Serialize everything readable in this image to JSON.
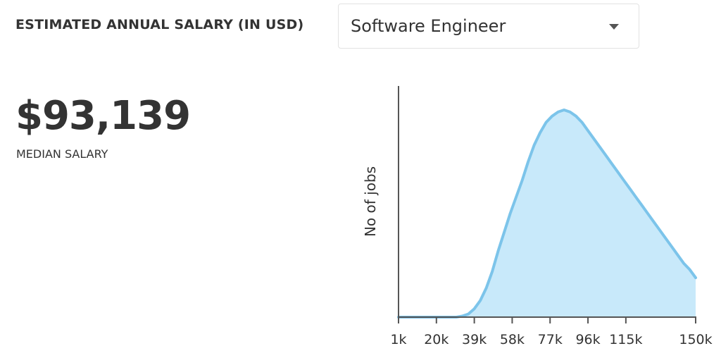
{
  "header": {
    "title": "ESTIMATED ANNUAL SALARY (IN USD)",
    "job_select": {
      "selected": "Software Engineer"
    }
  },
  "summary": {
    "median_value": "$93,139",
    "median_label": "MEDIAN SALARY"
  },
  "colors": {
    "text": "#333333",
    "curve_stroke": "#7cc4ea",
    "curve_fill": "#c8e9fa",
    "axis": "#555555"
  },
  "chart_data": {
    "type": "area",
    "title": "",
    "xlabel": "",
    "ylabel": "No of jobs",
    "x_ticks": [
      "1k",
      "20k",
      "39k",
      "58k",
      "77k",
      "96k",
      "115k",
      "150k"
    ],
    "x_tick_values": [
      1,
      20,
      39,
      58,
      77,
      96,
      115,
      150
    ],
    "xlim": [
      1,
      150
    ],
    "ylim": [
      0,
      1
    ],
    "y_ticks_shown": false,
    "grid": false,
    "legend": "none",
    "series": [
      {
        "x": [
          1,
          10,
          20,
          30,
          33,
          36,
          39,
          42,
          45,
          48,
          51,
          54,
          57,
          60,
          63,
          66,
          69,
          72,
          75,
          78,
          81,
          84,
          87,
          90,
          93,
          96,
          99,
          102,
          105,
          108,
          111,
          114,
          117,
          120,
          123,
          126,
          129,
          132,
          135,
          138,
          141,
          144,
          147,
          150
        ],
        "y": [
          0.0,
          0.0,
          0.0,
          0.0,
          0.005,
          0.015,
          0.04,
          0.08,
          0.14,
          0.22,
          0.32,
          0.41,
          0.5,
          0.58,
          0.66,
          0.75,
          0.83,
          0.89,
          0.94,
          0.97,
          0.99,
          1.0,
          0.99,
          0.97,
          0.94,
          0.9,
          0.86,
          0.82,
          0.78,
          0.74,
          0.7,
          0.66,
          0.62,
          0.58,
          0.54,
          0.5,
          0.46,
          0.42,
          0.38,
          0.34,
          0.3,
          0.26,
          0.23,
          0.19
        ]
      }
    ]
  }
}
